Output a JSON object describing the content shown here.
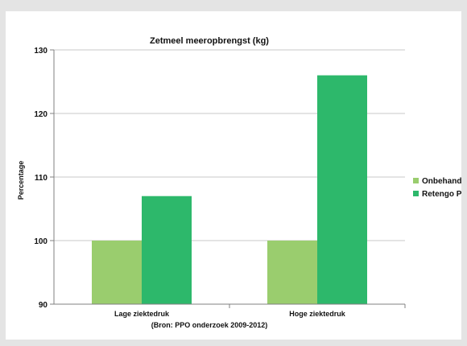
{
  "chart_data": {
    "type": "bar",
    "title": "Zetmeel meeropbrengst (kg)",
    "ylabel": "Percentage",
    "xlabel": "(Bron: PPO onderzoek 2009-2012)",
    "categories": [
      "Lage ziektedruk",
      "Hoge ziektedruk"
    ],
    "series": [
      {
        "name": "Onbehandeld",
        "values": [
          100,
          100
        ],
        "color": "#9acd6e"
      },
      {
        "name": "Retengo Plus",
        "values": [
          107,
          126
        ],
        "color": "#2db86b"
      }
    ],
    "ylim": [
      90,
      130
    ],
    "yticks": [
      90,
      100,
      110,
      120,
      130
    ],
    "grid": true,
    "legend": "right"
  }
}
